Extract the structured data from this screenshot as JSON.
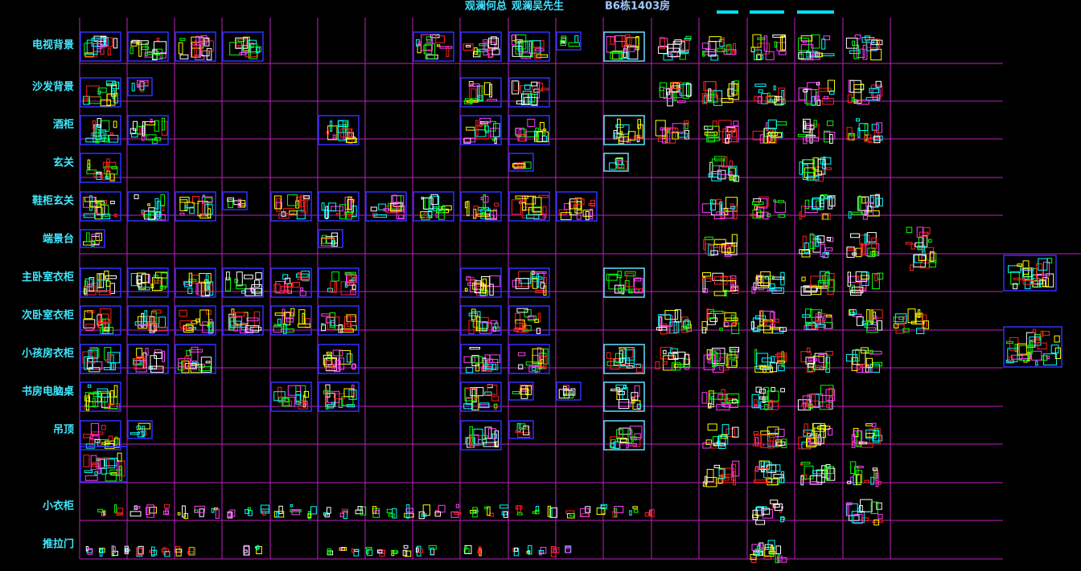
{
  "header": {
    "client_a": "观澜何总",
    "client_b": "观澜吴先生",
    "room": "B6栋1403房"
  },
  "rows": [
    "电视背景",
    "沙发背景",
    "酒柜",
    "玄关",
    "鞋柜玄关",
    "端景台",
    "主卧室衣柜",
    "次卧室衣柜",
    "小孩房衣柜",
    "书房电脑桌",
    "吊顶",
    "小衣柜",
    "推拉门"
  ]
}
